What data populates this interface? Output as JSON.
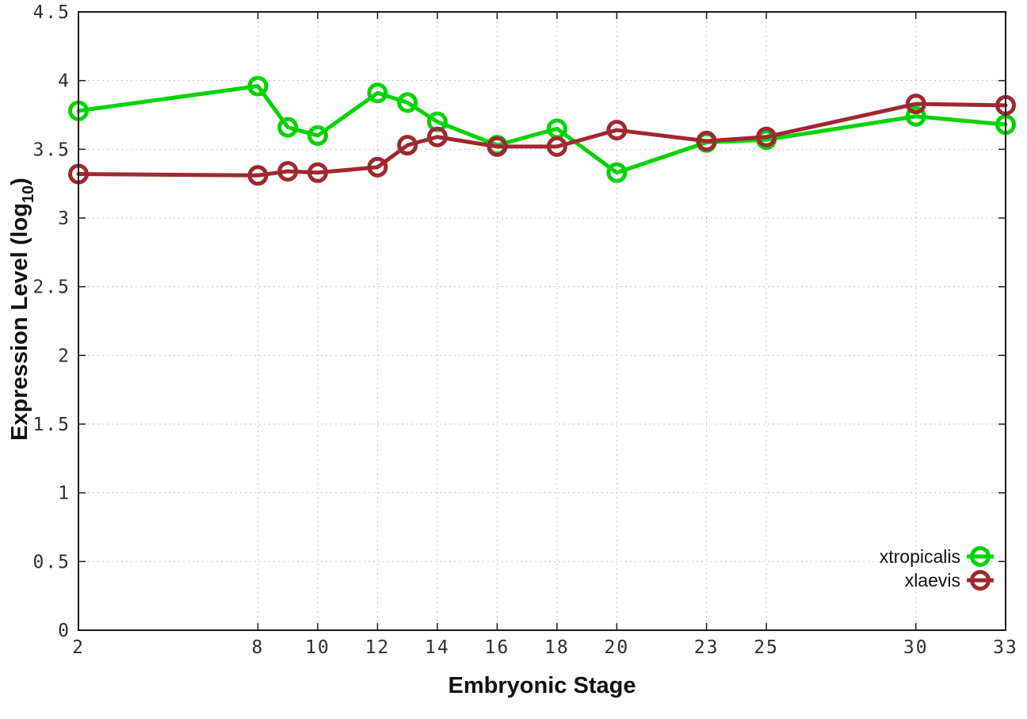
{
  "chart_data": {
    "type": "line",
    "title": "",
    "xlabel": "Embryonic Stage",
    "ylabel": "Expression Level (log10)",
    "ylabel_main": "Expression Level (log",
    "ylabel_sub": "10",
    "ylabel_close": ")",
    "x": [
      2,
      8,
      9,
      10,
      12,
      13,
      14,
      16,
      18,
      20,
      23,
      25,
      30,
      33
    ],
    "series": [
      {
        "name": "xtropicalis",
        "color": "#00d400",
        "values": [
          3.78,
          3.96,
          3.66,
          3.6,
          3.91,
          3.84,
          3.7,
          3.53,
          3.65,
          3.33,
          3.55,
          3.57,
          3.74,
          3.68
        ]
      },
      {
        "name": "xlaevis",
        "color": "#a02830",
        "values": [
          3.32,
          3.31,
          3.34,
          3.33,
          3.37,
          3.53,
          3.59,
          3.52,
          3.52,
          3.64,
          3.56,
          3.59,
          3.83,
          3.82
        ]
      }
    ],
    "xlim": [
      2,
      33
    ],
    "ylim": [
      0,
      4.5
    ],
    "xticks": [
      2,
      8,
      10,
      12,
      14,
      16,
      18,
      20,
      23,
      25,
      30,
      33
    ],
    "yticks": [
      0,
      0.5,
      1,
      1.5,
      2,
      2.5,
      3,
      3.5,
      4,
      4.5
    ],
    "grid": true,
    "legend_position": "bottom-right"
  },
  "style": {
    "grid_color": "#c4c4c4",
    "border_color": "#1a1a1a",
    "tick_label_color": "#2e2e2e",
    "background": "#ffffff"
  }
}
